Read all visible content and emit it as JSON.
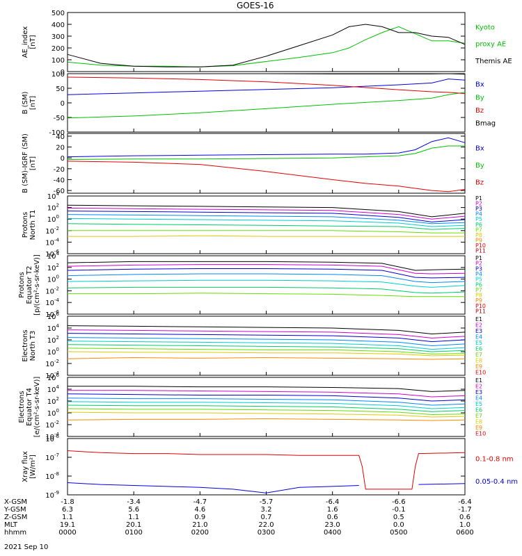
{
  "title": "GOES-16",
  "date": "2021 Sep 10",
  "colors": {
    "black": "#000000",
    "red": "#e00000",
    "green": "#00c000",
    "blue": "#0000e0",
    "series_colors": [
      "#000000",
      "#cc00cc",
      "#0000cc",
      "#0088ff",
      "#00cccc",
      "#00cc66",
      "#66dd00",
      "#ddcc00",
      "#ff8800",
      "#ee0000",
      "#aa0000"
    ]
  },
  "ephemeris": {
    "labels": [
      "X-GSM",
      "Y-GSM",
      "Z-GSM",
      "MLT",
      "hhmm"
    ],
    "columns": [
      [
        "-1.8",
        "6.3",
        "1.1",
        "19.1",
        "0000"
      ],
      [
        "-3.4",
        "5.6",
        "1.1",
        "20.1",
        "0100"
      ],
      [
        "-4.7",
        "4.6",
        "0.9",
        "21.0",
        "0200"
      ],
      [
        "-5.7",
        "3.2",
        "0.7",
        "22.0",
        "0300"
      ],
      [
        "-6.4",
        "1.6",
        "0.6",
        "23.0",
        "0400"
      ],
      [
        "-6.6",
        "-0.1",
        "0.5",
        "0.0",
        "0500"
      ],
      [
        "-6.4",
        "-1.7",
        "0.6",
        "1.0",
        "0600"
      ]
    ]
  },
  "chart_data": [
    {
      "type": "line",
      "ylabel": [
        "AE_index",
        "[nT]"
      ],
      "ylim": [
        0,
        500
      ],
      "yticks": [
        "0",
        "100",
        "200",
        "300",
        "400",
        "500"
      ],
      "x_hours": [
        0,
        0.5,
        1,
        1.5,
        2,
        2.5,
        3,
        3.5,
        4,
        4.25,
        4.5,
        4.75,
        5,
        5.25,
        5.5,
        5.75,
        6
      ],
      "legend": [
        "Kyoto",
        "proxy AE",
        "Themis AE"
      ],
      "series": [
        {
          "name": "Kyoto proxy AE",
          "color": "green",
          "values": [
            80,
            55,
            45,
            45,
            40,
            50,
            85,
            120,
            160,
            200,
            270,
            330,
            380,
            320,
            260,
            260,
            240
          ]
        },
        {
          "name": "Themis AE",
          "color": "black",
          "values": [
            145,
            70,
            45,
            40,
            40,
            55,
            130,
            220,
            310,
            380,
            400,
            380,
            330,
            330,
            300,
            290,
            230
          ]
        }
      ]
    },
    {
      "type": "line",
      "ylabel": [
        "B (SM)",
        "[nT]"
      ],
      "ylim": [
        -100,
        100
      ],
      "yticks": [
        "-100",
        "-50",
        "0",
        "50",
        "100"
      ],
      "x_hours": [
        0,
        1,
        2,
        3,
        4,
        5,
        5.5,
        5.75,
        6
      ],
      "legend": [
        "Bx",
        "By",
        "Bz",
        "Bmag"
      ],
      "series": [
        {
          "name": "Bx",
          "color": "blue",
          "values": [
            28,
            34,
            40,
            46,
            52,
            62,
            68,
            82,
            78
          ]
        },
        {
          "name": "By",
          "color": "green",
          "values": [
            -52,
            -45,
            -34,
            -20,
            -5,
            8,
            16,
            28,
            36
          ]
        },
        {
          "name": "Bz",
          "color": "red",
          "values": [
            88,
            85,
            80,
            72,
            60,
            45,
            38,
            36,
            32
          ]
        },
        {
          "name": "Bmag",
          "color": "black",
          "values": [
            100,
            100,
            100,
            100,
            99,
            99,
            99,
            103,
            98
          ]
        }
      ]
    },
    {
      "type": "line",
      "ylabel": [
        "B (SM)-IGRF (SM)",
        "[nT]"
      ],
      "ylim": [
        -65,
        45
      ],
      "yticks": [
        "-60",
        "-40",
        "-20",
        "0",
        "20",
        "40"
      ],
      "x_hours": [
        0,
        1,
        2,
        3,
        4,
        4.5,
        5,
        5.25,
        5.5,
        5.75,
        6
      ],
      "legend": [
        "Bx",
        "By",
        "Bz"
      ],
      "series": [
        {
          "name": "Bx",
          "color": "blue",
          "values": [
            2,
            4,
            5,
            6,
            7,
            7,
            9,
            15,
            30,
            37,
            28
          ]
        },
        {
          "name": "By",
          "color": "green",
          "values": [
            -3,
            -2,
            -2,
            -1,
            0,
            2,
            4,
            8,
            18,
            22,
            22
          ]
        },
        {
          "name": "Bz",
          "color": "red",
          "values": [
            -6,
            -8,
            -12,
            -25,
            -40,
            -47,
            -52,
            -56,
            -60,
            -62,
            -58
          ]
        }
      ]
    },
    {
      "type": "line",
      "ylabel": [
        "Protons",
        "North T1"
      ],
      "yscale": "log",
      "ylim_exp": [
        -6,
        4
      ],
      "yticks_exp": [
        -6,
        -4,
        -2,
        0,
        2,
        4
      ],
      "x_hours": [
        0,
        1,
        2,
        3,
        4,
        5,
        5.5,
        6
      ],
      "legend": [
        "P1",
        "P2",
        "P3",
        "P4",
        "P5",
        "P6",
        "P7",
        "P8",
        "P9",
        "P10",
        "P11"
      ],
      "series": [
        {
          "name": "P1",
          "values": [
            2.4,
            2.3,
            2.2,
            2.1,
            2.0,
            1.3,
            0.4,
            1.0
          ]
        },
        {
          "name": "P2",
          "values": [
            1.9,
            1.8,
            1.7,
            1.6,
            1.5,
            0.8,
            0.0,
            0.5
          ]
        },
        {
          "name": "P3",
          "values": [
            1.4,
            1.3,
            1.2,
            1.1,
            1.0,
            0.3,
            -0.5,
            -0.1
          ]
        },
        {
          "name": "P4",
          "values": [
            0.8,
            0.7,
            0.6,
            0.5,
            0.4,
            -0.2,
            -0.8,
            -0.6
          ]
        },
        {
          "name": "P5",
          "values": [
            0.1,
            0.0,
            -0.1,
            -0.2,
            -0.3,
            -0.7,
            -1.3,
            -1.1
          ]
        },
        {
          "name": "P6",
          "values": [
            -0.8,
            -0.9,
            -1.0,
            -1.1,
            -1.2,
            -1.3,
            -1.8,
            -1.6
          ]
        },
        {
          "name": "P7",
          "values": [
            -2.0,
            -2.0,
            -2.0,
            -2.0,
            -2.0,
            -2.2,
            -2.4,
            -2.4
          ]
        },
        {
          "name": "P8",
          "values": [
            -3.0,
            -3.0,
            -2.9,
            -3.0,
            -3.0,
            -3.0,
            -3.0,
            -3.0
          ]
        }
      ]
    },
    {
      "type": "line",
      "ylabel": [
        "Protons",
        "Equator T2",
        "[p/(cm²-s-sr-keV)]"
      ],
      "yscale": "log",
      "ylim_exp": [
        -6,
        4
      ],
      "yticks_exp": [
        -6,
        -4,
        -2,
        0,
        2,
        4
      ],
      "x_hours": [
        0,
        1,
        2,
        3,
        4,
        4.75,
        5.25,
        5.5,
        6
      ],
      "legend": [
        "P1",
        "P2",
        "P3",
        "P4",
        "P5",
        "P6",
        "P7",
        "P8",
        "P9",
        "P10",
        "P11"
      ],
      "series": [
        {
          "name": "P1",
          "values": [
            2.8,
            3.0,
            3.0,
            3.0,
            2.9,
            2.7,
            1.5,
            1.6,
            1.7
          ]
        },
        {
          "name": "P2",
          "values": [
            2.2,
            2.4,
            2.5,
            2.5,
            2.4,
            2.2,
            1.0,
            0.9,
            1.0
          ]
        },
        {
          "name": "P3",
          "values": [
            1.5,
            1.7,
            1.8,
            1.8,
            1.7,
            1.5,
            0.3,
            0.2,
            0.3
          ]
        },
        {
          "name": "P4",
          "values": [
            0.6,
            0.8,
            0.9,
            0.9,
            0.8,
            0.6,
            -0.4,
            -0.6,
            -0.4
          ]
        },
        {
          "name": "P5",
          "values": [
            -0.4,
            -0.3,
            -0.2,
            -0.2,
            -0.3,
            -0.5,
            -1.2,
            -1.4,
            -1.1
          ]
        },
        {
          "name": "P6",
          "values": [
            -1.5,
            -1.4,
            -1.4,
            -1.4,
            -1.5,
            -1.7,
            -2.3,
            -2.4,
            -2.2
          ]
        },
        {
          "name": "P7",
          "values": [
            -2.5,
            -2.5,
            -2.4,
            -2.5,
            -2.6,
            -2.8,
            -3.0,
            -3.0,
            -3.0
          ]
        }
      ]
    },
    {
      "type": "line",
      "ylabel": [
        "Electrons",
        "North T3"
      ],
      "yscale": "log",
      "ylim_exp": [
        -4,
        6
      ],
      "yticks_exp": [
        -4,
        -2,
        0,
        2,
        4,
        6
      ],
      "x_hours": [
        0,
        1,
        2,
        3,
        4,
        5,
        5.5,
        6
      ],
      "legend": [
        "E1",
        "E2",
        "E3",
        "E4",
        "E5",
        "E6",
        "E7",
        "E8",
        "E9",
        "E10"
      ],
      "series": [
        {
          "name": "E1",
          "values": [
            4.4,
            4.3,
            4.2,
            4.1,
            4.0,
            3.6,
            3.0,
            3.3
          ]
        },
        {
          "name": "E2",
          "values": [
            3.7,
            3.6,
            3.5,
            3.4,
            3.3,
            2.9,
            2.3,
            2.6
          ]
        },
        {
          "name": "E3",
          "values": [
            3.1,
            3.0,
            2.9,
            2.8,
            2.7,
            2.3,
            1.7,
            2.0
          ]
        },
        {
          "name": "E4",
          "values": [
            2.4,
            2.3,
            2.2,
            2.1,
            2.0,
            1.6,
            1.0,
            1.3
          ]
        },
        {
          "name": "E5",
          "values": [
            1.8,
            1.7,
            1.6,
            1.5,
            1.4,
            1.0,
            0.4,
            0.7
          ]
        },
        {
          "name": "E6",
          "values": [
            1.2,
            1.1,
            1.0,
            0.9,
            0.8,
            0.5,
            0.0,
            0.2
          ]
        },
        {
          "name": "E7",
          "values": [
            0.6,
            0.5,
            0.4,
            0.3,
            0.3,
            0.0,
            -0.4,
            -0.3
          ]
        },
        {
          "name": "E8",
          "values": [
            0.0,
            -0.1,
            -0.1,
            -0.2,
            -0.2,
            -0.4,
            -0.7,
            -0.6
          ]
        },
        {
          "name": "E9",
          "values": [
            -1.2,
            -1.0,
            -1.1,
            -1.0,
            -1.1,
            -1.2,
            -1.3,
            -1.2
          ]
        }
      ]
    },
    {
      "type": "line",
      "ylabel": [
        "Electrons",
        "Equator T4",
        "[e/(cm²-s-sr-keV)]"
      ],
      "yscale": "log",
      "ylim_exp": [
        -4,
        6
      ],
      "yticks_exp": [
        -4,
        -2,
        0,
        2,
        4,
        6
      ],
      "x_hours": [
        0,
        1,
        2,
        3,
        4,
        5,
        5.5,
        6
      ],
      "legend": [
        "E1",
        "E2",
        "E3",
        "E4",
        "E5",
        "E6",
        "E7",
        "E8",
        "E9",
        "E10"
      ],
      "series": [
        {
          "name": "E1",
          "values": [
            4.5,
            4.5,
            4.4,
            4.4,
            4.3,
            4.1,
            3.6,
            3.8
          ]
        },
        {
          "name": "E2",
          "values": [
            3.8,
            3.8,
            3.7,
            3.6,
            3.5,
            3.2,
            2.7,
            2.9
          ]
        },
        {
          "name": "E3",
          "values": [
            3.2,
            3.1,
            3.0,
            3.0,
            2.9,
            2.5,
            2.0,
            2.2
          ]
        },
        {
          "name": "E4",
          "values": [
            2.5,
            2.4,
            2.4,
            2.3,
            2.2,
            1.8,
            1.3,
            1.5
          ]
        },
        {
          "name": "E5",
          "values": [
            1.9,
            1.8,
            1.8,
            1.7,
            1.6,
            1.2,
            0.7,
            0.9
          ]
        },
        {
          "name": "E6",
          "values": [
            1.3,
            1.2,
            1.2,
            1.1,
            1.0,
            0.6,
            0.2,
            0.4
          ]
        },
        {
          "name": "E7",
          "values": [
            0.7,
            0.6,
            0.6,
            0.5,
            0.4,
            0.1,
            -0.3,
            -0.2
          ]
        },
        {
          "name": "E8",
          "values": [
            0.1,
            0.0,
            0.0,
            -0.1,
            -0.2,
            -0.4,
            -0.7,
            -0.6
          ]
        },
        {
          "name": "E9",
          "values": [
            -1.2,
            -1.1,
            -1.1,
            -1.0,
            -1.1,
            -1.2,
            -1.3,
            -1.2
          ]
        }
      ]
    },
    {
      "type": "line",
      "ylabel": [
        "Xray flux",
        "[W/m²]"
      ],
      "yscale": "log",
      "ylim_exp": [
        -9,
        -6
      ],
      "yticks_exp": [
        -9,
        -8,
        -7,
        -6
      ],
      "x_hours": [
        0,
        0.5,
        1,
        1.5,
        2,
        2.5,
        3,
        3.5,
        4,
        4.4,
        4.45,
        4.5,
        5.2,
        5.25,
        5.3,
        6
      ],
      "legend": [
        "0.1-0.8 nm",
        "0.05-0.4 nm"
      ],
      "series": [
        {
          "name": "0.1-0.8 nm",
          "color": "red",
          "values": [
            -6.65,
            -6.75,
            -6.8,
            -6.8,
            -6.85,
            -6.85,
            -6.85,
            -6.9,
            -6.9,
            -6.9,
            -7.5,
            -8.7,
            -8.7,
            -7.5,
            -6.8,
            -6.75
          ]
        },
        {
          "name": "0.05-0.4 nm",
          "color": "blue",
          "values": [
            -8.35,
            -8.45,
            -8.5,
            -8.55,
            -8.6,
            -8.7,
            -8.9,
            -8.6,
            -8.55,
            -8.5,
            null,
            null,
            null,
            null,
            -8.45,
            -8.4
          ]
        }
      ]
    }
  ]
}
